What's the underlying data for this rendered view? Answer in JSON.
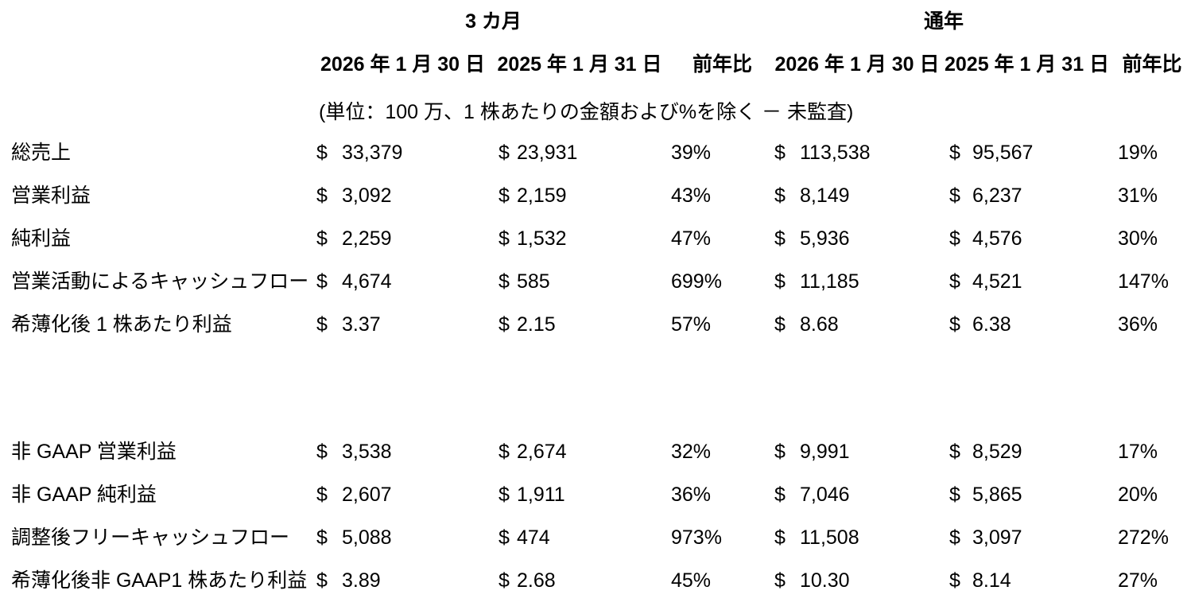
{
  "page": {
    "background_color": "#ffffff",
    "text_color": "#000000"
  },
  "table": {
    "currency": "$",
    "group_headers": {
      "three_months": "3 カ月",
      "full_year": "通年"
    },
    "column_headers": {
      "q_2026": "2026 年 1 月 30 日",
      "q_2025": "2025 年 1 月 31 日",
      "q_yoy": "前年比",
      "fy_2026": "2026 年 1 月 30 日",
      "fy_2025": "2025 年 1 月 31 日",
      "fy_yoy": "前年比"
    },
    "units_note": "(単位：100 万、1 株あたりの金額および%を除く － 未監査)",
    "gaap_rows": [
      {
        "label": "総売上",
        "q_2026": "33,379",
        "q_2025": "23,931",
        "q_yoy": "39%",
        "fy_2026": "113,538",
        "fy_2025": "95,567",
        "fy_yoy": "19%"
      },
      {
        "label": "営業利益",
        "q_2026": "3,092",
        "q_2025": "2,159",
        "q_yoy": "43%",
        "fy_2026": "8,149",
        "fy_2025": "6,237",
        "fy_yoy": "31%"
      },
      {
        "label": "純利益",
        "q_2026": "2,259",
        "q_2025": "1,532",
        "q_yoy": "47%",
        "fy_2026": "5,936",
        "fy_2025": "4,576",
        "fy_yoy": "30%"
      },
      {
        "label": "営業活動によるキャッシュフロー",
        "q_2026": "4,674",
        "q_2025": "585",
        "q_yoy": "699%",
        "fy_2026": "11,185",
        "fy_2025": "4,521",
        "fy_yoy": "147%"
      },
      {
        "label": "希薄化後 1 株あたり利益",
        "q_2026": "3.37",
        "q_2025": "2.15",
        "q_yoy": "57%",
        "fy_2026": "8.68",
        "fy_2025": "6.38",
        "fy_yoy": "36%"
      }
    ],
    "non_gaap_rows": [
      {
        "label": "非 GAAP 営業利益",
        "q_2026": "3,538",
        "q_2025": "2,674",
        "q_yoy": "32%",
        "fy_2026": "9,991",
        "fy_2025": "8,529",
        "fy_yoy": "17%"
      },
      {
        "label": "非 GAAP 純利益",
        "q_2026": "2,607",
        "q_2025": "1,911",
        "q_yoy": "36%",
        "fy_2026": "7,046",
        "fy_2025": "5,865",
        "fy_yoy": "20%"
      },
      {
        "label": "調整後フリーキャッシュフロー",
        "q_2026": "5,088",
        "q_2025": "474",
        "q_yoy": "973%",
        "fy_2026": "11,508",
        "fy_2025": "3,097",
        "fy_yoy": "272%"
      },
      {
        "label": "希薄化後非 GAAP1 株あたり利益",
        "q_2026": "3.89",
        "q_2025": "2.68",
        "q_yoy": "45%",
        "fy_2026": "10.30",
        "fy_2025": "8.14",
        "fy_yoy": "27%"
      }
    ]
  }
}
